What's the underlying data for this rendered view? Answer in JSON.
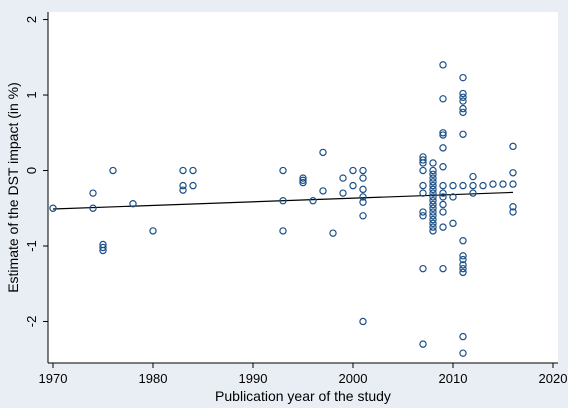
{
  "chart_data": {
    "type": "scatter",
    "xlabel": "Publication year of the study",
    "ylabel": "Estimate of the DST impact (in %)",
    "xlim": [
      1969.5,
      2020.5
    ],
    "ylim": [
      -2.55,
      2.1
    ],
    "xticks": [
      1970,
      1980,
      1990,
      2000,
      2010,
      2020
    ],
    "yticks": [
      -2,
      -1,
      0,
      1,
      2
    ],
    "grid": false,
    "legend": "none",
    "colors": {
      "background": "#e9eef4",
      "plot_area": "#ffffff",
      "points": "#1b4f87",
      "fit_line": "#000000"
    },
    "points": [
      [
        1970,
        -0.5
      ],
      [
        1974,
        -0.3
      ],
      [
        1974,
        -0.5
      ],
      [
        1975,
        -0.98
      ],
      [
        1975,
        -1.02
      ],
      [
        1975,
        -1.06
      ],
      [
        1976,
        0.0
      ],
      [
        1978,
        -0.44
      ],
      [
        1980,
        -0.8
      ],
      [
        1983,
        0.0
      ],
      [
        1983,
        -0.2
      ],
      [
        1983,
        -0.26
      ],
      [
        1984,
        0.0
      ],
      [
        1984,
        -0.2
      ],
      [
        1993,
        0.0
      ],
      [
        1993,
        -0.4
      ],
      [
        1993,
        -0.8
      ],
      [
        1995,
        -0.1
      ],
      [
        1995,
        -0.13
      ],
      [
        1995,
        -0.16
      ],
      [
        1996,
        -0.4
      ],
      [
        1997,
        0.24
      ],
      [
        1997,
        -0.27
      ],
      [
        1998,
        -0.83
      ],
      [
        1999,
        -0.1
      ],
      [
        1999,
        -0.3
      ],
      [
        2000,
        0.0
      ],
      [
        2000,
        -0.2
      ],
      [
        2001,
        0.0
      ],
      [
        2001,
        -0.1
      ],
      [
        2001,
        -0.25
      ],
      [
        2001,
        -0.35
      ],
      [
        2001,
        -0.42
      ],
      [
        2001,
        -0.6
      ],
      [
        2001,
        -2.0
      ],
      [
        2007,
        0.18
      ],
      [
        2007,
        0.14
      ],
      [
        2007,
        0.1
      ],
      [
        2007,
        0.0
      ],
      [
        2007,
        -0.2
      ],
      [
        2007,
        -0.3
      ],
      [
        2007,
        -0.55
      ],
      [
        2007,
        -0.6
      ],
      [
        2007,
        -1.3
      ],
      [
        2007,
        -2.3
      ],
      [
        2008,
        0.1
      ],
      [
        2008,
        0.0
      ],
      [
        2008,
        -0.05
      ],
      [
        2008,
        -0.1
      ],
      [
        2008,
        -0.15
      ],
      [
        2008,
        -0.2
      ],
      [
        2008,
        -0.25
      ],
      [
        2008,
        -0.3
      ],
      [
        2008,
        -0.35
      ],
      [
        2008,
        -0.4
      ],
      [
        2008,
        -0.45
      ],
      [
        2008,
        -0.5
      ],
      [
        2008,
        -0.55
      ],
      [
        2008,
        -0.6
      ],
      [
        2008,
        -0.65
      ],
      [
        2008,
        -0.7
      ],
      [
        2008,
        -0.75
      ],
      [
        2008,
        -0.8
      ],
      [
        2009,
        1.4
      ],
      [
        2009,
        0.95
      ],
      [
        2009,
        0.5
      ],
      [
        2009,
        0.47
      ],
      [
        2009,
        0.3
      ],
      [
        2009,
        0.05
      ],
      [
        2009,
        -0.2
      ],
      [
        2009,
        -0.3
      ],
      [
        2009,
        -0.35
      ],
      [
        2009,
        -0.45
      ],
      [
        2009,
        -0.55
      ],
      [
        2009,
        -0.75
      ],
      [
        2009,
        -1.3
      ],
      [
        2010,
        -0.2
      ],
      [
        2010,
        -0.35
      ],
      [
        2010,
        -0.7
      ],
      [
        2011,
        1.23
      ],
      [
        2011,
        1.02
      ],
      [
        2011,
        0.97
      ],
      [
        2011,
        0.92
      ],
      [
        2011,
        0.82
      ],
      [
        2011,
        0.77
      ],
      [
        2011,
        0.48
      ],
      [
        2011,
        -0.2
      ],
      [
        2011,
        -0.93
      ],
      [
        2011,
        -1.13
      ],
      [
        2011,
        -1.18
      ],
      [
        2011,
        -1.25
      ],
      [
        2011,
        -1.3
      ],
      [
        2011,
        -1.35
      ],
      [
        2011,
        -2.2
      ],
      [
        2011,
        -2.42
      ],
      [
        2012,
        -0.08
      ],
      [
        2012,
        -0.2
      ],
      [
        2012,
        -0.3
      ],
      [
        2013,
        -0.2
      ],
      [
        2014,
        -0.18
      ],
      [
        2015,
        -0.18
      ],
      [
        2016,
        0.32
      ],
      [
        2016,
        -0.03
      ],
      [
        2016,
        -0.18
      ],
      [
        2016,
        -0.48
      ],
      [
        2016,
        -0.55
      ]
    ],
    "fit_line": {
      "x": [
        1970,
        2016
      ],
      "y": [
        -0.51,
        -0.29
      ]
    }
  }
}
